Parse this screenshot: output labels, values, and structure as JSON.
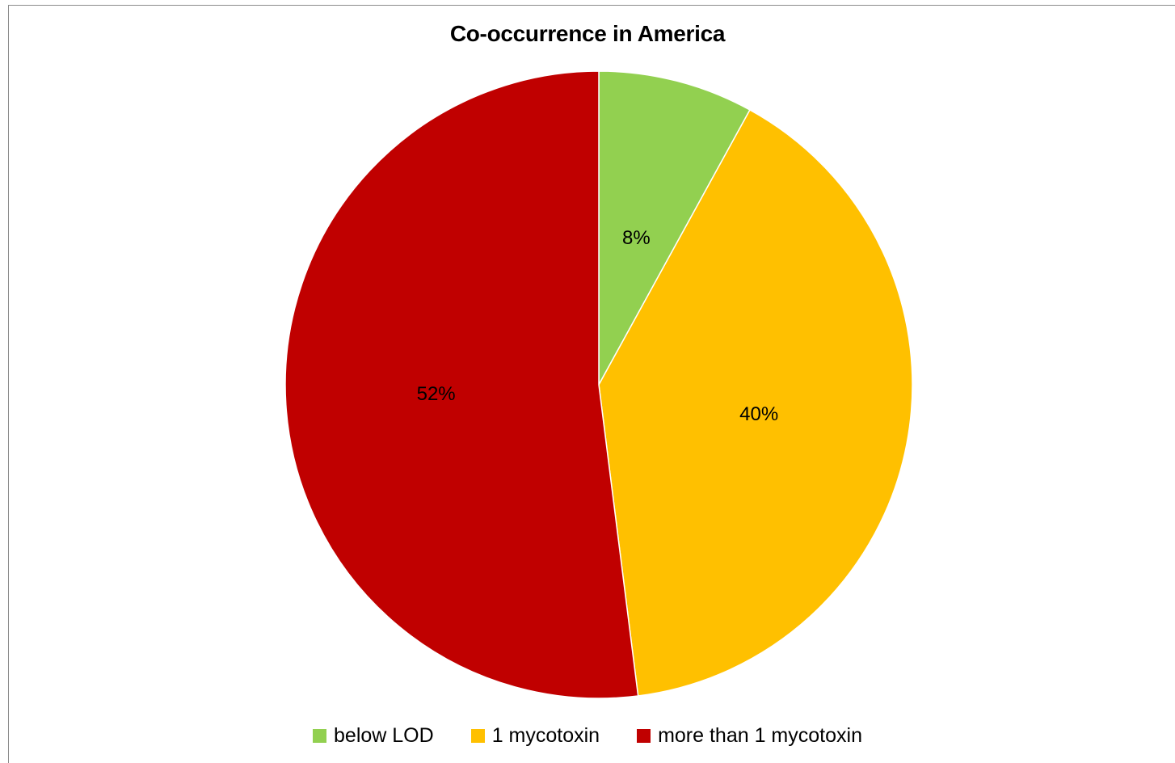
{
  "chart_data": {
    "type": "pie",
    "title": "Co-occurrence in America",
    "categories": [
      "below LOD",
      "1 mycotoxin",
      "more than 1 mycotoxin"
    ],
    "values": [
      8,
      40,
      52
    ],
    "labels": [
      "8%",
      "40%",
      "52%"
    ],
    "colors": [
      "#92d050",
      "#ffc000",
      "#c00000"
    ],
    "legend_position": "bottom",
    "start_angle": "12 o'clock",
    "direction": "clockwise"
  }
}
